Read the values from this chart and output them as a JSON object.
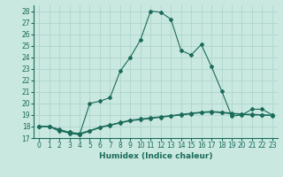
{
  "xlabel": "Humidex (Indice chaleur)",
  "ylabel": "",
  "background_color": "#c8e8e0",
  "grid_color": "#b0d4cc",
  "line_color": "#1a6b5a",
  "xlim": [
    -0.5,
    23.5
  ],
  "ylim": [
    17,
    28.5
  ],
  "yticks": [
    17,
    18,
    19,
    20,
    21,
    22,
    23,
    24,
    25,
    26,
    27,
    28
  ],
  "xticks": [
    0,
    1,
    2,
    3,
    4,
    5,
    6,
    7,
    8,
    9,
    10,
    11,
    12,
    13,
    14,
    15,
    16,
    17,
    18,
    19,
    20,
    21,
    22,
    23
  ],
  "line1_x": [
    0,
    1,
    2,
    3,
    4,
    5,
    6,
    7,
    8,
    9,
    10,
    11,
    12,
    13,
    14,
    15,
    16,
    17,
    18,
    19,
    20,
    21,
    22,
    23
  ],
  "line1_y": [
    18.0,
    18.0,
    17.6,
    17.5,
    17.3,
    20.0,
    20.2,
    20.5,
    22.8,
    24.0,
    25.5,
    28.0,
    27.9,
    27.3,
    24.6,
    24.2,
    25.1,
    23.2,
    21.1,
    18.9,
    19.0,
    19.5,
    19.5,
    19.0
  ],
  "line2_x": [
    0,
    1,
    2,
    3,
    4,
    5,
    6,
    7,
    8,
    9,
    10,
    11,
    12,
    13,
    14,
    15,
    16,
    17,
    18,
    19,
    20,
    21,
    22,
    23
  ],
  "line2_y": [
    18.0,
    18.0,
    17.7,
    17.4,
    17.3,
    17.6,
    17.9,
    18.1,
    18.3,
    18.5,
    18.6,
    18.7,
    18.8,
    18.9,
    19.0,
    19.1,
    19.2,
    19.25,
    19.2,
    19.1,
    19.05,
    19.0,
    19.0,
    18.95
  ],
  "line3_x": [
    0,
    1,
    2,
    3,
    4,
    5,
    6,
    7,
    8,
    9,
    10,
    11,
    12,
    13,
    14,
    15,
    16,
    17,
    18,
    19,
    20,
    21,
    22,
    23
  ],
  "line3_y": [
    18.0,
    18.0,
    17.75,
    17.5,
    17.4,
    17.65,
    17.95,
    18.15,
    18.35,
    18.55,
    18.65,
    18.75,
    18.85,
    18.95,
    19.05,
    19.15,
    19.25,
    19.3,
    19.25,
    19.15,
    19.08,
    19.05,
    19.02,
    18.97
  ]
}
